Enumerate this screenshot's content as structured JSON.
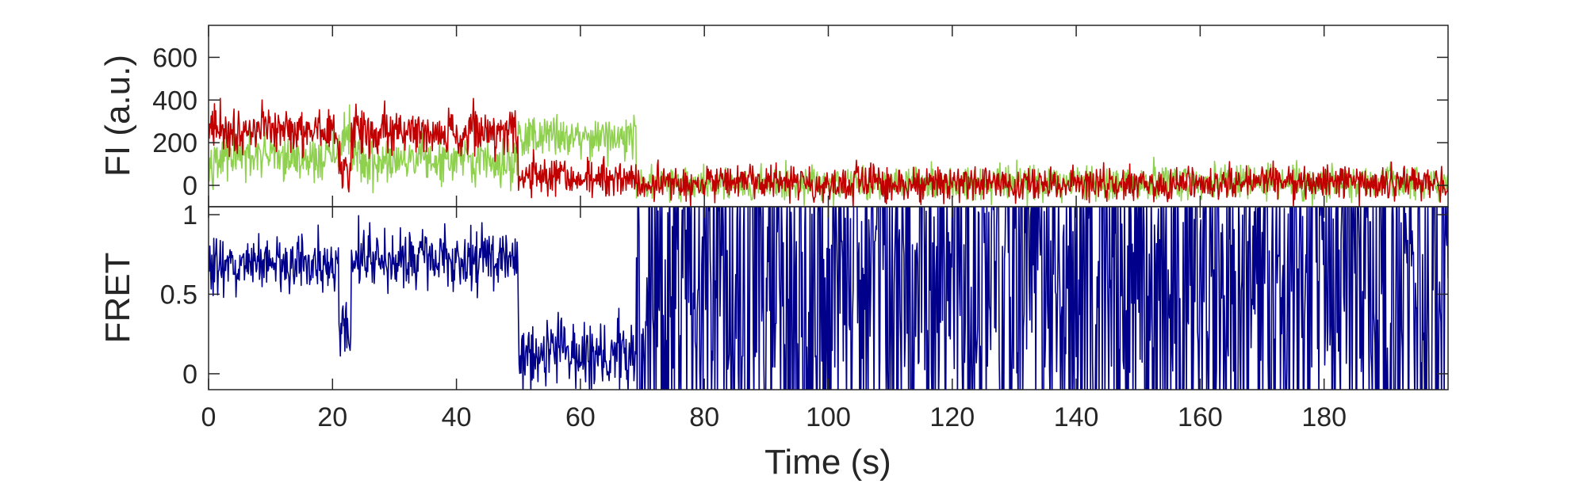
{
  "colors": {
    "donor": "#8fd14f",
    "acceptor": "#c00000",
    "fret": "#00008b",
    "axis": "#262626"
  },
  "chart_data": [
    {
      "type": "line",
      "ylabel": "FI (a.u.)",
      "xlim": [
        0,
        200
      ],
      "ylim": [
        -100,
        750
      ],
      "yticks": [
        0,
        200,
        400,
        600
      ],
      "ytick_labels": [
        "0",
        "200",
        "400",
        "600"
      ],
      "grid": false,
      "segments": [
        {
          "x_start": 0,
          "x_end": 21,
          "acceptor_mean": 260,
          "donor_mean": 130,
          "noise": 55
        },
        {
          "x_start": 21,
          "x_end": 23,
          "acceptor_mean": 90,
          "donor_mean": 230,
          "noise": 55
        },
        {
          "x_start": 23,
          "x_end": 50,
          "acceptor_mean": 250,
          "donor_mean": 110,
          "noise": 55
        },
        {
          "x_start": 50,
          "x_end": 69,
          "acceptor_mean": 40,
          "donor_mean": 230,
          "noise": 45
        },
        {
          "x_start": 69,
          "x_end": 200,
          "acceptor_mean": 10,
          "donor_mean": 10,
          "noise": 40
        }
      ],
      "series": [
        {
          "key": "donor",
          "color": "#8fd14f"
        },
        {
          "key": "acceptor",
          "color": "#c00000"
        }
      ]
    },
    {
      "type": "line",
      "ylabel": "FRET",
      "xlabel": "Time (s)",
      "xlim": [
        0,
        200
      ],
      "ylim": [
        -0.1,
        1.05
      ],
      "yticks": [
        0,
        0.5,
        1
      ],
      "ytick_labels": [
        "0",
        "0.5",
        "1"
      ],
      "xticks": [
        0,
        20,
        40,
        60,
        80,
        100,
        120,
        140,
        160,
        180
      ],
      "xtick_labels": [
        "0",
        "20",
        "40",
        "60",
        "80",
        "100",
        "120",
        "140",
        "160",
        "180"
      ],
      "grid": false,
      "segments": [
        {
          "x_start": 0,
          "x_end": 21,
          "mean": 0.68,
          "noise": 0.09
        },
        {
          "x_start": 21,
          "x_end": 23,
          "mean": 0.28,
          "noise": 0.1
        },
        {
          "x_start": 23,
          "x_end": 50,
          "mean": 0.72,
          "noise": 0.1
        },
        {
          "x_start": 50,
          "x_end": 69,
          "mean": 0.12,
          "noise": 0.1
        },
        {
          "x_start": 69,
          "x_end": 200,
          "mean": 0.5,
          "noise": 0.7
        }
      ],
      "series": [
        {
          "key": "fret",
          "color": "#00008b"
        }
      ]
    }
  ]
}
